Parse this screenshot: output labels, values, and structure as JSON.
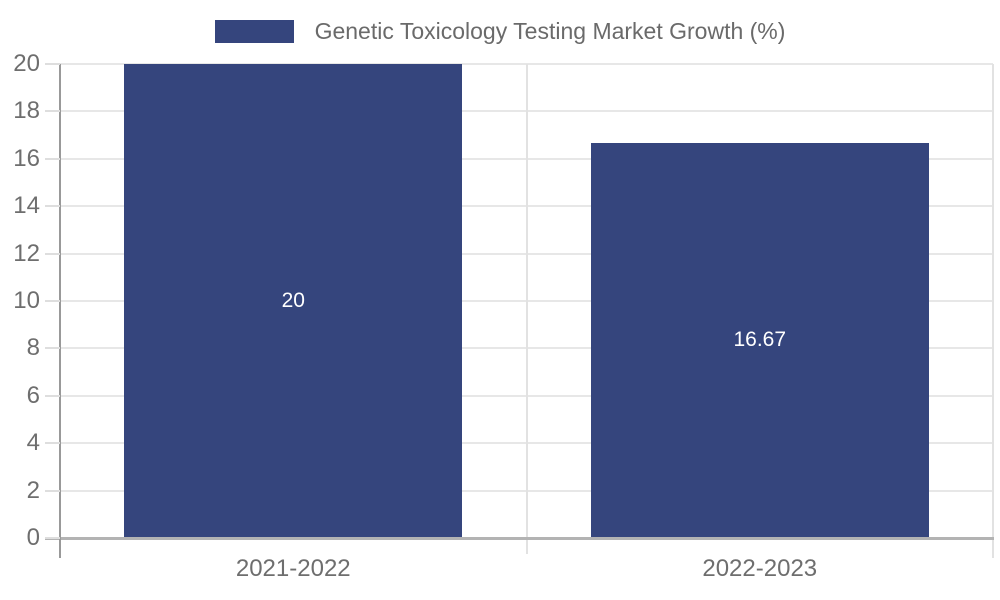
{
  "chart_data": {
    "type": "bar",
    "title": "Genetic Toxicology Testing Market Growth (%)",
    "categories": [
      "2021-2022",
      "2022-2023"
    ],
    "values": [
      20,
      16.67
    ],
    "value_labels": [
      "20",
      "16.67"
    ],
    "xlabel": "",
    "ylabel": "",
    "ylim": [
      0,
      20
    ],
    "ytick_step": 2,
    "yticks": [
      0,
      2,
      4,
      6,
      8,
      10,
      12,
      14,
      16,
      18,
      20
    ],
    "grid": true,
    "legend_position": "top-center",
    "data_labels_position": "center-of-bar",
    "colors": {
      "bar": "#35457d",
      "bar_label_text": "#ffffff",
      "axis_text": "#6e6e6e",
      "legend_text": "#6a6a6a",
      "y_axis_line": "#999999",
      "x_axis_line": "#b3b3b3",
      "gridline": "#e7e7e7",
      "plot_border": "#e2e2e2",
      "background": "#ffffff"
    }
  }
}
